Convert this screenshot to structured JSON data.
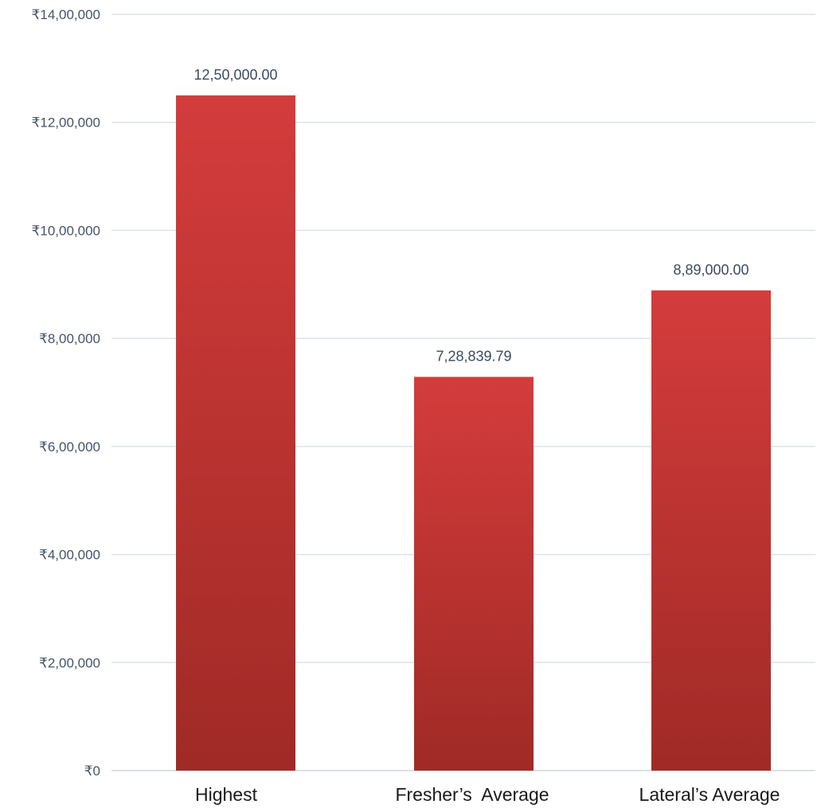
{
  "chart_data": {
    "type": "bar",
    "categories": [
      "Highest",
      "Fresher’s  Average",
      "Lateral’s Average"
    ],
    "values": [
      1250000,
      728839.79,
      889000
    ],
    "data_labels": [
      "12,50,000.00",
      "7,28,839.79",
      "8,89,000.00"
    ],
    "ylim": [
      0,
      1400000
    ],
    "y_ticks": [
      0,
      200000,
      400000,
      600000,
      800000,
      1000000,
      1200000,
      1400000
    ],
    "y_tick_labels": [
      "₹0",
      "₹2,00,000",
      "₹4,00,000",
      "₹6,00,000",
      "₹8,00,000",
      "₹10,00,000",
      "₹12,00,000",
      "₹14,00,000"
    ],
    "grid": true,
    "legend": "none",
    "colors": {
      "bar_top": "#d43c3c",
      "bar_bottom": "#a02a26",
      "tick_text": "#44546a",
      "label_text": "#3b4a61",
      "category_text": "#1a1a1a",
      "grid": "#dde3ea"
    }
  }
}
